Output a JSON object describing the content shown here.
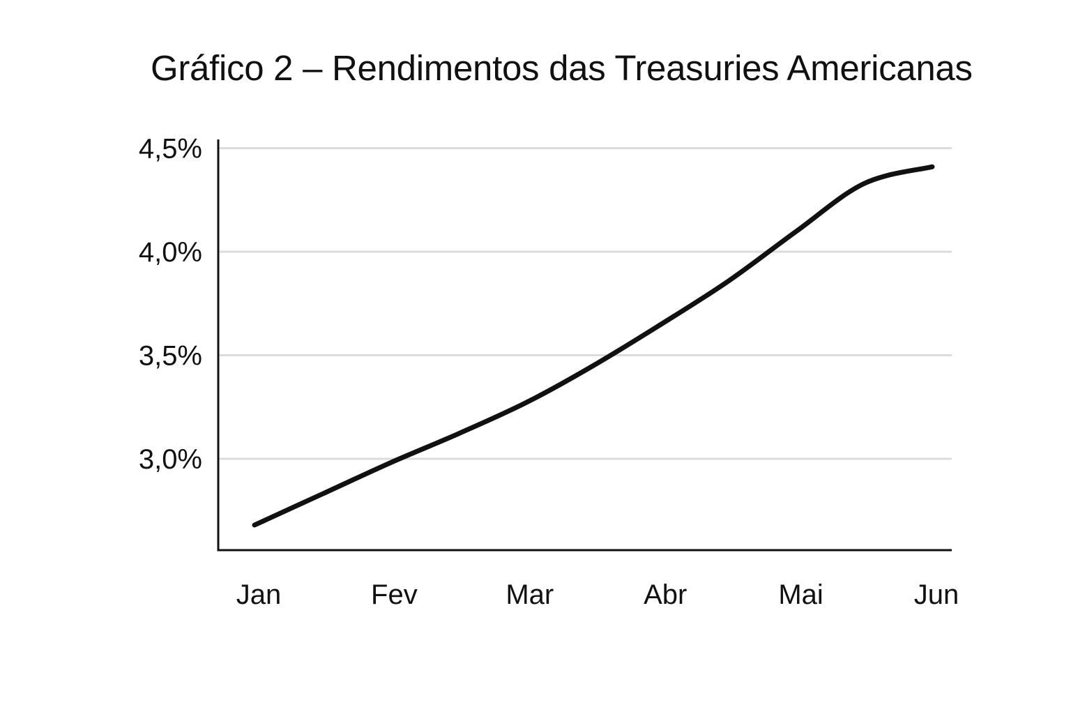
{
  "chart_data": {
    "type": "line",
    "title": "Gráfico 2 – Rendimentos das Treasuries Americanas",
    "xlabel": "",
    "ylabel": "",
    "categories": [
      "Jan",
      "Fev",
      "Mar",
      "Abr",
      "Mai",
      "Jun"
    ],
    "x": [
      0,
      0.5,
      1,
      1.5,
      2,
      2.5,
      3,
      3.5,
      4,
      4.5,
      5
    ],
    "series": [
      {
        "values": [
          2.68,
          2.83,
          2.98,
          3.12,
          3.27,
          3.45,
          3.65,
          3.86,
          4.1,
          4.33,
          4.41
        ]
      }
    ],
    "yticks": [
      "4,5%",
      "4,0%",
      "3,5%",
      "3,0%"
    ],
    "ytick_values": [
      4.5,
      4.0,
      3.5,
      3.0
    ],
    "ylim": [
      2.6,
      4.55
    ],
    "grid": true,
    "colors": {
      "line": "#111111",
      "grid": "#dcdcdc",
      "axis": "#111111",
      "text": "#111111"
    }
  }
}
